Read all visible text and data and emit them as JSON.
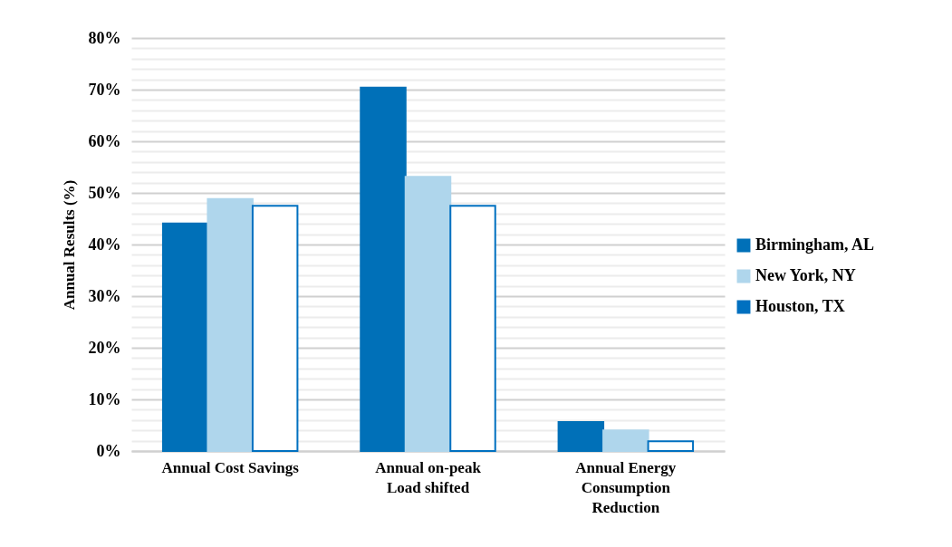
{
  "chart_data": {
    "type": "bar",
    "ylabel": "Annual Results (%)",
    "categories": [
      "Annual Cost Savings",
      "Annual on-peak Load shifted",
      "Annual Energy Consumption Reduction"
    ],
    "series": [
      {
        "name": "Birmingham, AL",
        "color": "#0070b8",
        "values": [
          44.1,
          70.4,
          5.6
        ]
      },
      {
        "name": "New York, NY",
        "color": "#afd6ec",
        "values": [
          48.8,
          53.1,
          4.0
        ]
      },
      {
        "name": "Houston, TX",
        "color": "#0070c0",
        "values": [
          47.5,
          47.5,
          1.9
        ]
      }
    ],
    "ylim": [
      0,
      80
    ],
    "yticks": [
      {
        "value": 0,
        "label": "0%"
      },
      {
        "value": 2,
        "label": null
      },
      {
        "value": 4,
        "label": null
      },
      {
        "value": 6,
        "label": null
      },
      {
        "value": 8,
        "label": null
      },
      {
        "value": 10,
        "label": "10%"
      },
      {
        "value": 12,
        "label": null
      },
      {
        "value": 14,
        "label": null
      },
      {
        "value": 16,
        "label": null
      },
      {
        "value": 18,
        "label": null
      },
      {
        "value": 20,
        "label": "20%"
      },
      {
        "value": 22,
        "label": null
      },
      {
        "value": 24,
        "label": null
      },
      {
        "value": 26,
        "label": null
      },
      {
        "value": 28,
        "label": null
      },
      {
        "value": 30,
        "label": "30%"
      },
      {
        "value": 32,
        "label": null
      },
      {
        "value": 34,
        "label": null
      },
      {
        "value": 36,
        "label": null
      },
      {
        "value": 38,
        "label": null
      },
      {
        "value": 40,
        "label": "40%"
      },
      {
        "value": 42,
        "label": null
      },
      {
        "value": 44,
        "label": null
      },
      {
        "value": 46,
        "label": null
      },
      {
        "value": 48,
        "label": null
      },
      {
        "value": 50,
        "label": "50%"
      },
      {
        "value": 52,
        "label": null
      },
      {
        "value": 54,
        "label": null
      },
      {
        "value": 56,
        "label": null
      },
      {
        "value": 58,
        "label": null
      },
      {
        "value": 60,
        "label": "60%"
      },
      {
        "value": 62,
        "label": null
      },
      {
        "value": 64,
        "label": null
      },
      {
        "value": 66,
        "label": null
      },
      {
        "value": 68,
        "label": null
      },
      {
        "value": 70,
        "label": "70%"
      },
      {
        "value": 72,
        "label": null
      },
      {
        "value": 74,
        "label": null
      },
      {
        "value": 76,
        "label": null
      },
      {
        "value": 78,
        "label": null
      },
      {
        "value": 80,
        "label": "80%"
      }
    ],
    "grid": true,
    "legend": "right"
  }
}
